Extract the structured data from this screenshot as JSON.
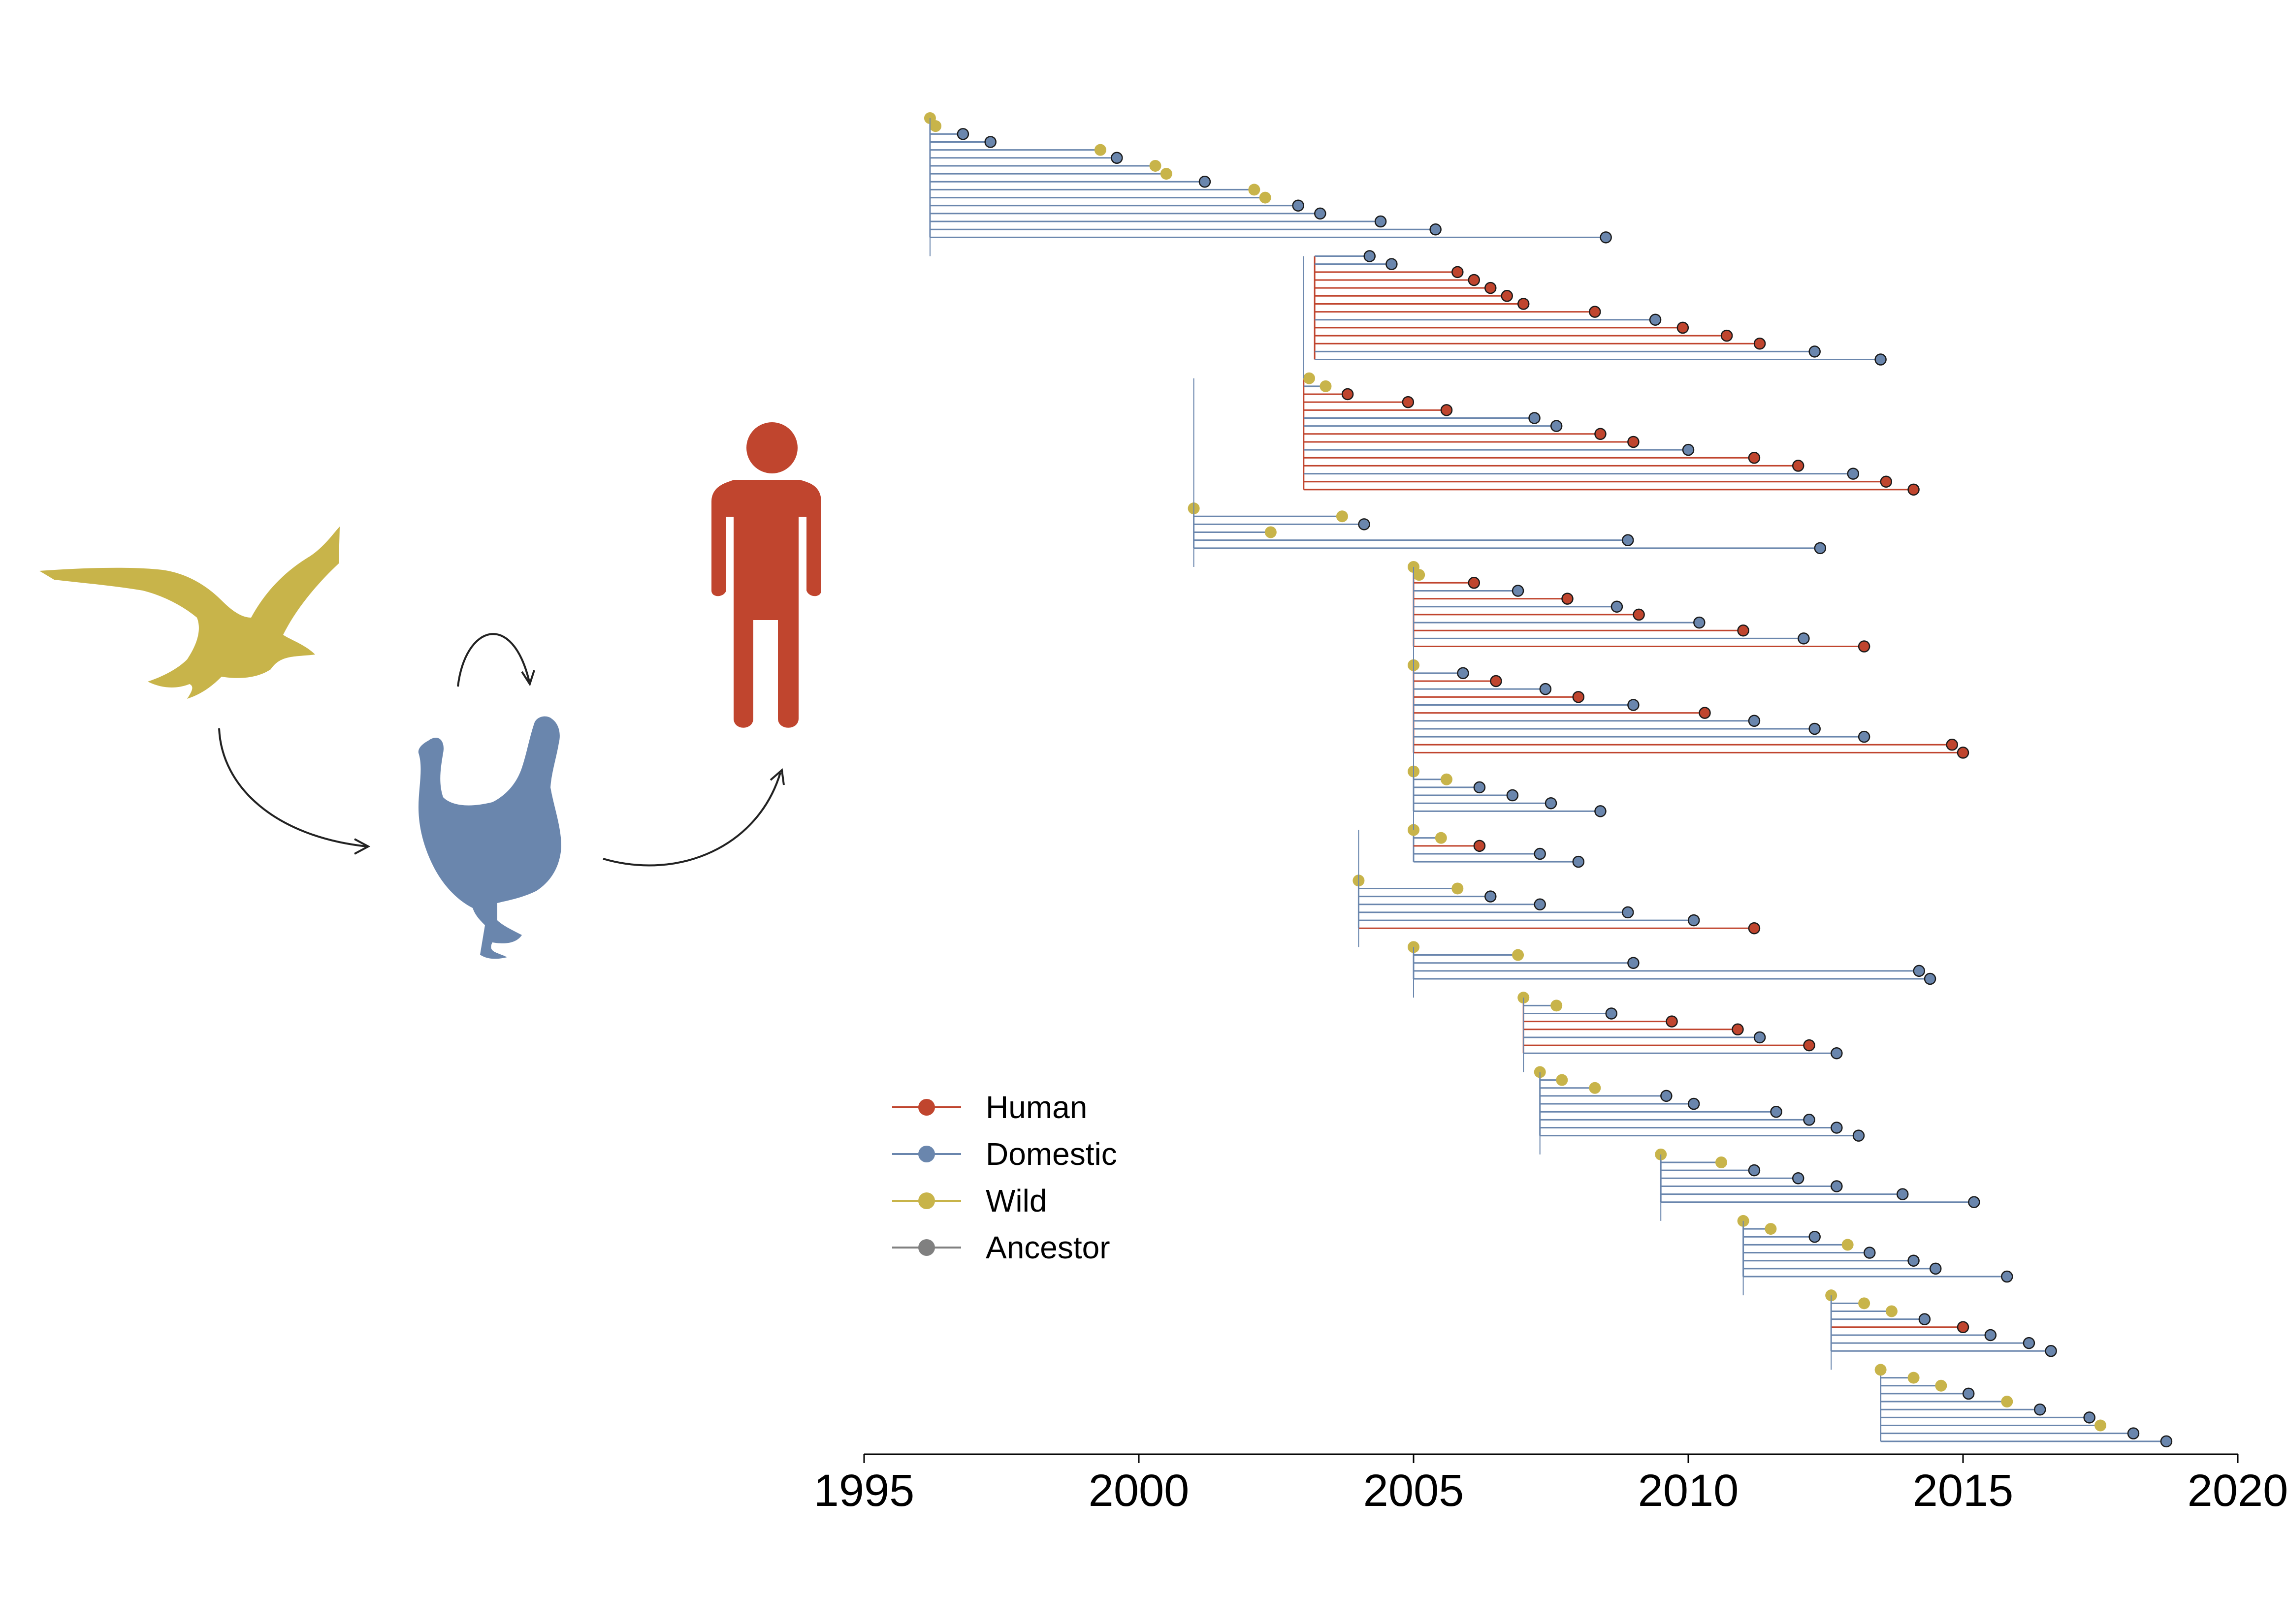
{
  "chart_data": {
    "type": "tree",
    "xlabel": "",
    "xlim": [
      1995,
      2020
    ],
    "xticks": [
      1995,
      2000,
      2005,
      2010,
      2015,
      2020
    ],
    "xtick_labels": [
      "1995",
      "2000",
      "2005",
      "2010",
      "2015",
      "2020"
    ],
    "colors": {
      "Human": "#c0452e",
      "Domestic": "#6a86ad",
      "Wild": "#c8b44a",
      "Ancestor": "#808080"
    },
    "legend": {
      "placement": "bottom-left",
      "entries": [
        "Human",
        "Domestic",
        "Wild",
        "Ancestor"
      ]
    },
    "clades": [
      {
        "root": 1996.2,
        "host": "Domestic",
        "end": 2008.5,
        "samples": [
          {
            "host": "Wild",
            "date": 1996.2
          },
          {
            "host": "Wild",
            "date": 1996.3
          },
          {
            "host": "Domestic",
            "date": 1996.8
          },
          {
            "host": "Domestic",
            "date": 1997.3
          },
          {
            "host": "Wild",
            "date": 1999.3
          },
          {
            "host": "Domestic",
            "date": 1999.6
          },
          {
            "host": "Wild",
            "date": 2000.3
          },
          {
            "host": "Wild",
            "date": 2000.5
          },
          {
            "host": "Domestic",
            "date": 2001.2
          },
          {
            "host": "Wild",
            "date": 2002.1
          },
          {
            "host": "Wild",
            "date": 2002.3
          },
          {
            "host": "Domestic",
            "date": 2002.9
          },
          {
            "host": "Domestic",
            "date": 2003.3
          },
          {
            "host": "Domestic",
            "date": 2004.4
          },
          {
            "host": "Domestic",
            "date": 2005.4
          },
          {
            "host": "Domestic",
            "date": 2008.5
          }
        ]
      },
      {
        "root": 2003.2,
        "host": "Human",
        "end": 2013.5,
        "samples": [
          {
            "host": "Domestic",
            "date": 2004.2
          },
          {
            "host": "Domestic",
            "date": 2004.6
          },
          {
            "host": "Human",
            "date": 2005.8
          },
          {
            "host": "Human",
            "date": 2006.1
          },
          {
            "host": "Human",
            "date": 2006.4
          },
          {
            "host": "Human",
            "date": 2006.7
          },
          {
            "host": "Human",
            "date": 2007.0
          },
          {
            "host": "Human",
            "date": 2008.3
          },
          {
            "host": "Domestic",
            "date": 2009.4
          },
          {
            "host": "Human",
            "date": 2009.9
          },
          {
            "host": "Human",
            "date": 2010.7
          },
          {
            "host": "Human",
            "date": 2011.3
          },
          {
            "host": "Domestic",
            "date": 2012.3
          },
          {
            "host": "Domestic",
            "date": 2013.5
          }
        ]
      },
      {
        "root": 2003.0,
        "host": "Human",
        "end": 2014.1,
        "samples": [
          {
            "host": "Wild",
            "date": 2003.1
          },
          {
            "host": "Wild",
            "date": 2003.4
          },
          {
            "host": "Human",
            "date": 2003.8
          },
          {
            "host": "Human",
            "date": 2004.9
          },
          {
            "host": "Human",
            "date": 2005.6
          },
          {
            "host": "Domestic",
            "date": 2007.2
          },
          {
            "host": "Domestic",
            "date": 2007.6
          },
          {
            "host": "Human",
            "date": 2008.4
          },
          {
            "host": "Human",
            "date": 2009.0
          },
          {
            "host": "Domestic",
            "date": 2010.0
          },
          {
            "host": "Human",
            "date": 2011.2
          },
          {
            "host": "Human",
            "date": 2012.0
          },
          {
            "host": "Domestic",
            "date": 2013.0
          },
          {
            "host": "Human",
            "date": 2013.6
          },
          {
            "host": "Human",
            "date": 2014.1
          }
        ]
      },
      {
        "root": 2001.0,
        "host": "Domestic",
        "end": 2012.5,
        "samples": [
          {
            "host": "Wild",
            "date": 2001.0
          },
          {
            "host": "Wild",
            "date": 2003.7
          },
          {
            "host": "Domestic",
            "date": 2004.1
          },
          {
            "host": "Wild",
            "date": 2002.4
          },
          {
            "host": "Domestic",
            "date": 2008.9
          },
          {
            "host": "Domestic",
            "date": 2012.4
          }
        ]
      },
      {
        "root": 2005.0,
        "host": "Human",
        "end": 2013.2,
        "samples": [
          {
            "host": "Wild",
            "date": 2005.0
          },
          {
            "host": "Wild",
            "date": 2005.1
          },
          {
            "host": "Human",
            "date": 2006.1
          },
          {
            "host": "Domestic",
            "date": 2006.9
          },
          {
            "host": "Human",
            "date": 2007.8
          },
          {
            "host": "Domestic",
            "date": 2008.7
          },
          {
            "host": "Human",
            "date": 2009.1
          },
          {
            "host": "Domestic",
            "date": 2010.2
          },
          {
            "host": "Human",
            "date": 2011.0
          },
          {
            "host": "Domestic",
            "date": 2012.1
          },
          {
            "host": "Human",
            "date": 2013.2
          }
        ]
      },
      {
        "root": 2005.0,
        "host": "Human",
        "end": 2015.0,
        "samples": [
          {
            "host": "Wild",
            "date": 2005.0
          },
          {
            "host": "Domestic",
            "date": 2005.9
          },
          {
            "host": "Human",
            "date": 2006.5
          },
          {
            "host": "Domestic",
            "date": 2007.4
          },
          {
            "host": "Human",
            "date": 2008.0
          },
          {
            "host": "Domestic",
            "date": 2009.0
          },
          {
            "host": "Human",
            "date": 2010.3
          },
          {
            "host": "Domestic",
            "date": 2011.2
          },
          {
            "host": "Domestic",
            "date": 2012.3
          },
          {
            "host": "Domestic",
            "date": 2013.2
          },
          {
            "host": "Human",
            "date": 2014.8
          },
          {
            "host": "Human",
            "date": 2015.0
          }
        ]
      },
      {
        "root": 2005.0,
        "host": "Domestic",
        "end": 2008.4,
        "samples": [
          {
            "host": "Wild",
            "date": 2005.0
          },
          {
            "host": "Wild",
            "date": 2005.6
          },
          {
            "host": "Domestic",
            "date": 2006.2
          },
          {
            "host": "Domestic",
            "date": 2006.8
          },
          {
            "host": "Domestic",
            "date": 2007.5
          },
          {
            "host": "Domestic",
            "date": 2008.4
          }
        ]
      },
      {
        "root": 2005.0,
        "host": "Domestic",
        "end": 2008.0,
        "samples": [
          {
            "host": "Wild",
            "date": 2005.0
          },
          {
            "host": "Wild",
            "date": 2005.5
          },
          {
            "host": "Human",
            "date": 2006.2
          },
          {
            "host": "Domestic",
            "date": 2007.3
          },
          {
            "host": "Domestic",
            "date": 2008.0
          }
        ]
      },
      {
        "root": 2004.0,
        "host": "Domestic",
        "end": 2011.2,
        "samples": [
          {
            "host": "Wild",
            "date": 2004.0
          },
          {
            "host": "Wild",
            "date": 2005.8
          },
          {
            "host": "Domestic",
            "date": 2006.4
          },
          {
            "host": "Domestic",
            "date": 2007.3
          },
          {
            "host": "Domestic",
            "date": 2008.9
          },
          {
            "host": "Domestic",
            "date": 2010.1
          },
          {
            "host": "Human",
            "date": 2011.2
          }
        ]
      },
      {
        "root": 2005.0,
        "host": "Domestic",
        "end": 2014.4,
        "samples": [
          {
            "host": "Wild",
            "date": 2005.0
          },
          {
            "host": "Wild",
            "date": 2006.9
          },
          {
            "host": "Domestic",
            "date": 2009.0
          },
          {
            "host": "Domestic",
            "date": 2014.2
          },
          {
            "host": "Domestic",
            "date": 2014.4
          }
        ]
      },
      {
        "root": 2007.0,
        "host": "Human",
        "end": 2012.7,
        "samples": [
          {
            "host": "Wild",
            "date": 2007.0
          },
          {
            "host": "Wild",
            "date": 2007.6
          },
          {
            "host": "Domestic",
            "date": 2008.6
          },
          {
            "host": "Human",
            "date": 2009.7
          },
          {
            "host": "Human",
            "date": 2010.9
          },
          {
            "host": "Domestic",
            "date": 2011.3
          },
          {
            "host": "Human",
            "date": 2012.2
          },
          {
            "host": "Domestic",
            "date": 2012.7
          }
        ]
      },
      {
        "root": 2007.3,
        "host": "Domestic",
        "end": 2013.1,
        "samples": [
          {
            "host": "Wild",
            "date": 2007.3
          },
          {
            "host": "Wild",
            "date": 2007.7
          },
          {
            "host": "Wild",
            "date": 2008.3
          },
          {
            "host": "Domestic",
            "date": 2009.6
          },
          {
            "host": "Domestic",
            "date": 2010.1
          },
          {
            "host": "Domestic",
            "date": 2011.6
          },
          {
            "host": "Domestic",
            "date": 2012.2
          },
          {
            "host": "Domestic",
            "date": 2012.7
          },
          {
            "host": "Domestic",
            "date": 2013.1
          }
        ]
      },
      {
        "root": 2009.5,
        "host": "Domestic",
        "end": 2015.2,
        "samples": [
          {
            "host": "Wild",
            "date": 2009.5
          },
          {
            "host": "Wild",
            "date": 2010.6
          },
          {
            "host": "Domestic",
            "date": 2011.2
          },
          {
            "host": "Domestic",
            "date": 2012.0
          },
          {
            "host": "Domestic",
            "date": 2012.7
          },
          {
            "host": "Domestic",
            "date": 2013.9
          },
          {
            "host": "Domestic",
            "date": 2015.2
          }
        ]
      },
      {
        "root": 2011.0,
        "host": "Domestic",
        "end": 2015.8,
        "samples": [
          {
            "host": "Wild",
            "date": 2011.0
          },
          {
            "host": "Wild",
            "date": 2011.5
          },
          {
            "host": "Domestic",
            "date": 2012.3
          },
          {
            "host": "Wild",
            "date": 2012.9
          },
          {
            "host": "Domestic",
            "date": 2013.3
          },
          {
            "host": "Domestic",
            "date": 2014.1
          },
          {
            "host": "Domestic",
            "date": 2014.5
          },
          {
            "host": "Domestic",
            "date": 2015.8
          }
        ]
      },
      {
        "root": 2012.6,
        "host": "Domestic",
        "end": 2016.6,
        "samples": [
          {
            "host": "Wild",
            "date": 2012.6
          },
          {
            "host": "Wild",
            "date": 2013.2
          },
          {
            "host": "Wild",
            "date": 2013.7
          },
          {
            "host": "Domestic",
            "date": 2014.3
          },
          {
            "host": "Human",
            "date": 2015.0
          },
          {
            "host": "Domestic",
            "date": 2015.5
          },
          {
            "host": "Domestic",
            "date": 2016.2
          },
          {
            "host": "Domestic",
            "date": 2016.6
          }
        ]
      },
      {
        "root": 2013.5,
        "host": "Domestic",
        "end": 2018.7,
        "samples": [
          {
            "host": "Wild",
            "date": 2013.5
          },
          {
            "host": "Wild",
            "date": 2014.1
          },
          {
            "host": "Wild",
            "date": 2014.6
          },
          {
            "host": "Domestic",
            "date": 2015.1
          },
          {
            "host": "Wild",
            "date": 2015.8
          },
          {
            "host": "Domestic",
            "date": 2016.4
          },
          {
            "host": "Domestic",
            "date": 2017.3
          },
          {
            "host": "Wild",
            "date": 2017.5
          },
          {
            "host": "Domestic",
            "date": 2018.1
          },
          {
            "host": "Domestic",
            "date": 2018.7
          }
        ]
      }
    ]
  },
  "legend": {
    "items": [
      {
        "label": "Human",
        "color": "#c0452e"
      },
      {
        "label": "Domestic",
        "color": "#6a86ad"
      },
      {
        "label": "Wild",
        "color": "#c8b44a"
      },
      {
        "label": "Ancestor",
        "color": "#808080"
      }
    ]
  },
  "icons": {
    "wild": {
      "name": "wild-bird-icon",
      "color": "#c8b44a"
    },
    "domestic": {
      "name": "chicken-icon",
      "color": "#6a86ad"
    },
    "human": {
      "name": "human-icon",
      "color": "#c0452e"
    }
  }
}
